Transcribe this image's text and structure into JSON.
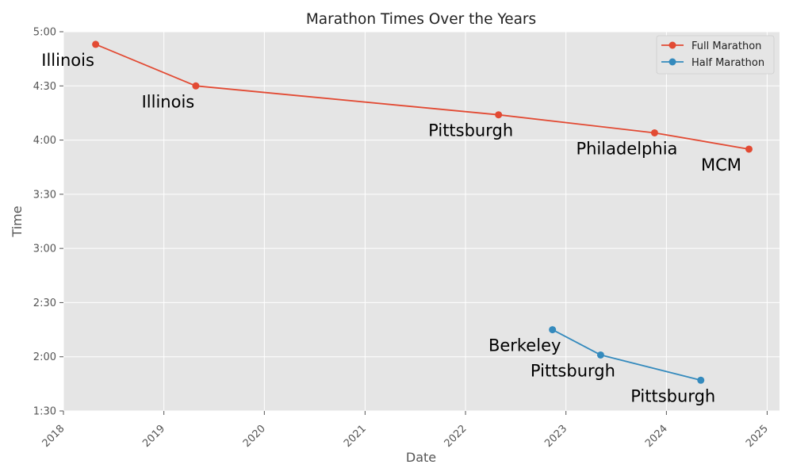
{
  "chart_data": {
    "type": "line",
    "title": "Marathon Times Over the Years",
    "xlabel": "Date",
    "ylabel": "Time",
    "x_ticks": [
      "2018",
      "2019",
      "2020",
      "2021",
      "2022",
      "2023",
      "2024",
      "2025"
    ],
    "y_ticks": [
      "1:30",
      "2:00",
      "2:30",
      "3:00",
      "3:30",
      "4:00",
      "4:30",
      "5:00"
    ],
    "xlim": [
      "2018-01-01",
      "2025-02-15"
    ],
    "ylim_minutes": [
      90,
      300
    ],
    "grid": true,
    "legend_position": "top-right",
    "background": "#E5E5E5",
    "series": [
      {
        "name": "Full Marathon",
        "color": "#E24A33",
        "points": [
          {
            "date": "2018-04-28",
            "time": "4:53",
            "minutes": 293,
            "label": "Illinois"
          },
          {
            "date": "2019-04-27",
            "time": "4:30",
            "minutes": 270,
            "label": "Illinois"
          },
          {
            "date": "2022-05-01",
            "time": "4:14",
            "minutes": 254,
            "label": "Pittsburgh"
          },
          {
            "date": "2023-11-19",
            "time": "4:04",
            "minutes": 244,
            "label": "Philadelphia"
          },
          {
            "date": "2024-10-27",
            "time": "3:55",
            "minutes": 235,
            "label": "MCM"
          }
        ]
      },
      {
        "name": "Half Marathon",
        "color": "#348ABD",
        "points": [
          {
            "date": "2022-11-13",
            "time": "2:15",
            "minutes": 135,
            "label": "Berkeley"
          },
          {
            "date": "2023-05-07",
            "time": "2:01",
            "minutes": 121,
            "label": "Pittsburgh"
          },
          {
            "date": "2024-05-05",
            "time": "1:47",
            "minutes": 107,
            "label": "Pittsburgh"
          }
        ]
      }
    ]
  }
}
